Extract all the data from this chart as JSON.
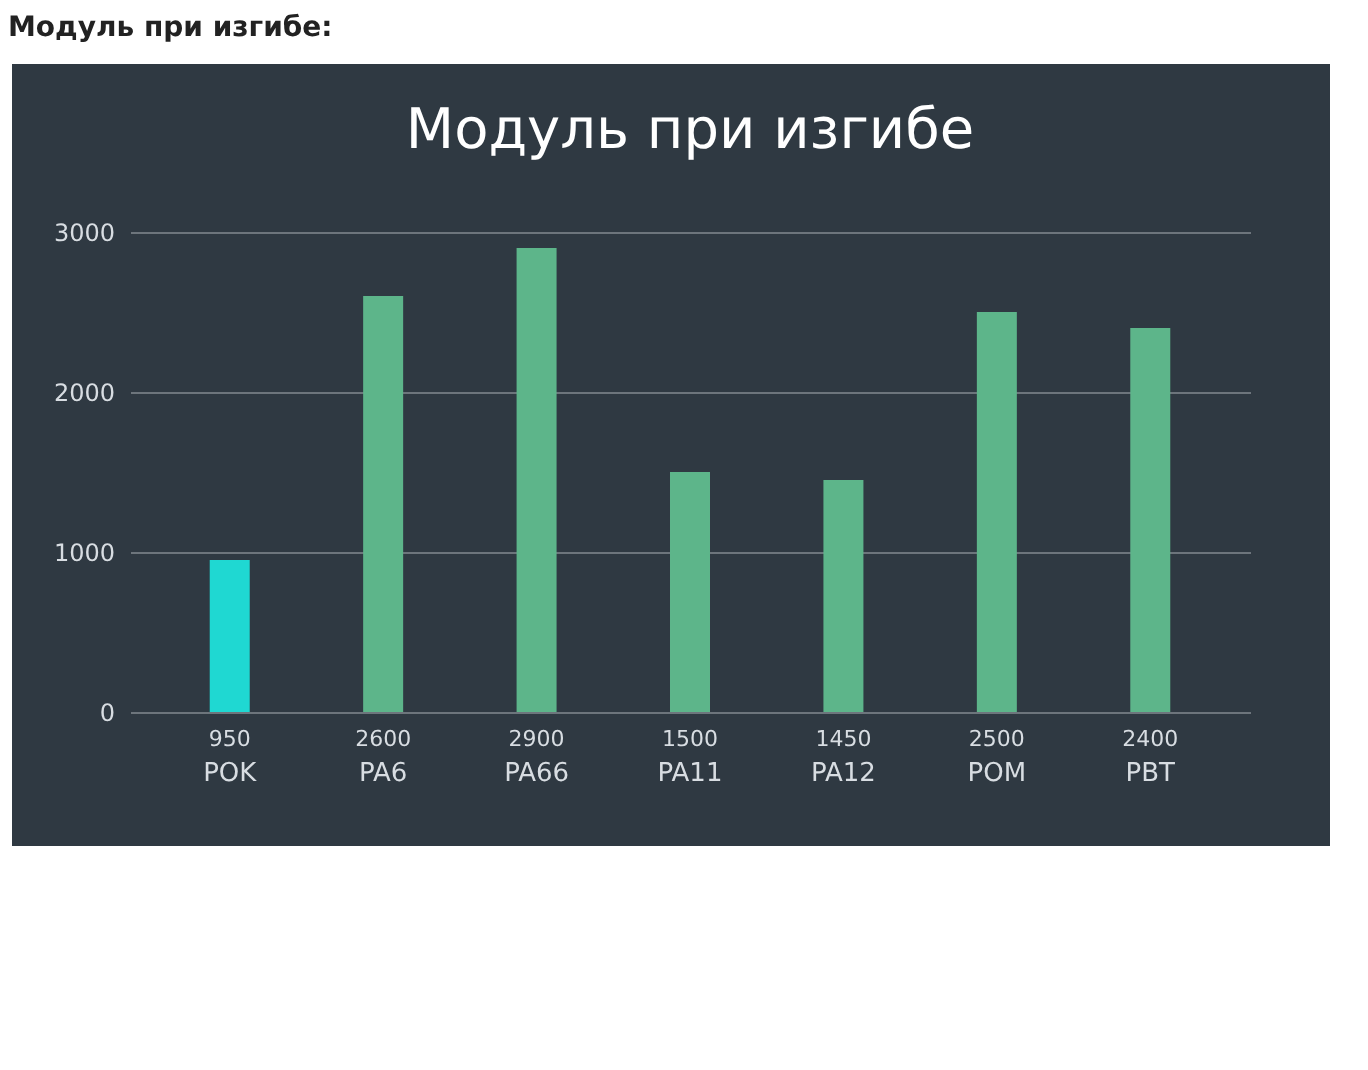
{
  "chart_data": {
    "type": "bar",
    "title": "Модуль при изгибе:",
    "subtitle": "Модуль при изгибе",
    "categories": [
      "POK",
      "PA6",
      "PA66",
      "PA11",
      "PA12",
      "POM",
      "PBT"
    ],
    "values": [
      950,
      2600,
      2900,
      1500,
      1450,
      2500,
      2400
    ],
    "colors": [
      "#1fd8d2",
      "#5db58a",
      "#5db58a",
      "#5db58a",
      "#5db58a",
      "#5db58a",
      "#5db58a"
    ],
    "ylim": [
      0,
      3000
    ],
    "yticks": [
      0,
      1000,
      2000,
      3000
    ],
    "grid": "y",
    "data_labels": true
  }
}
